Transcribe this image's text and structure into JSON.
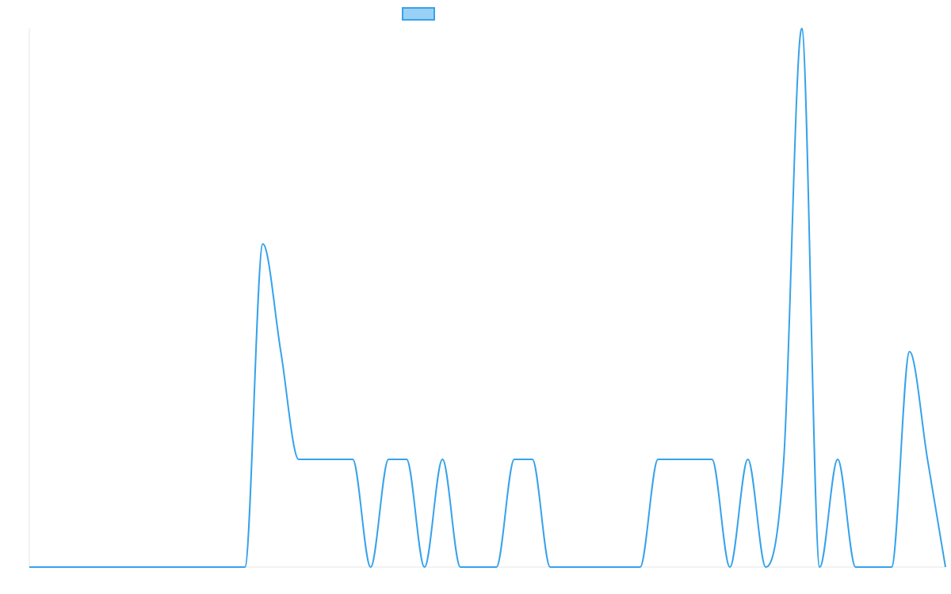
{
  "chart_data": {
    "type": "line",
    "title": "",
    "xlabel": "",
    "ylabel": "",
    "legend_position": "top-center",
    "grid": false,
    "x_range": [
      0,
      51
    ],
    "ylim": [
      0,
      5
    ],
    "series": [
      {
        "color": "#36a2eb",
        "fill_color": "#9ad0f5",
        "x": [
          0,
          1,
          2,
          3,
          4,
          5,
          6,
          7,
          8,
          9,
          10,
          11,
          12,
          13,
          14,
          15,
          16,
          17,
          18,
          19,
          20,
          21,
          22,
          23,
          24,
          25,
          26,
          27,
          28,
          29,
          30,
          31,
          32,
          33,
          34,
          35,
          36,
          37,
          38,
          39,
          40,
          41,
          42,
          43,
          44,
          45,
          46,
          47,
          48,
          49,
          50,
          51
        ],
        "values": [
          0,
          0,
          0,
          0,
          0,
          0,
          0,
          0,
          0,
          0,
          0,
          0,
          0,
          3,
          2,
          1,
          1,
          1,
          1,
          0,
          1,
          1,
          0,
          1,
          0,
          0,
          0,
          1,
          1,
          0,
          0,
          0,
          0,
          0,
          0,
          1,
          1,
          1,
          1,
          0,
          1,
          0,
          1,
          5,
          0,
          1,
          0,
          0,
          0,
          2,
          1,
          0
        ]
      }
    ]
  }
}
